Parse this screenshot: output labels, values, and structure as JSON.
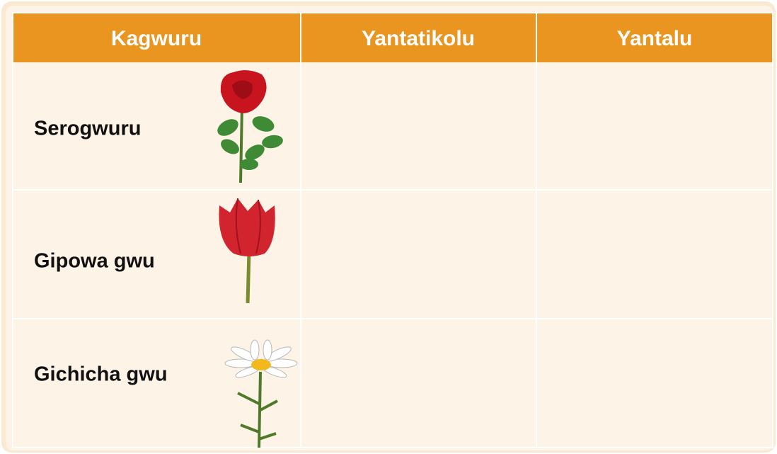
{
  "table": {
    "header": [
      "Kagwuru",
      "Yantatikolu",
      "Yantalu"
    ],
    "rows": [
      "Serogwuru",
      "Gipowa gwu",
      "Gichicha gwu"
    ]
  }
}
